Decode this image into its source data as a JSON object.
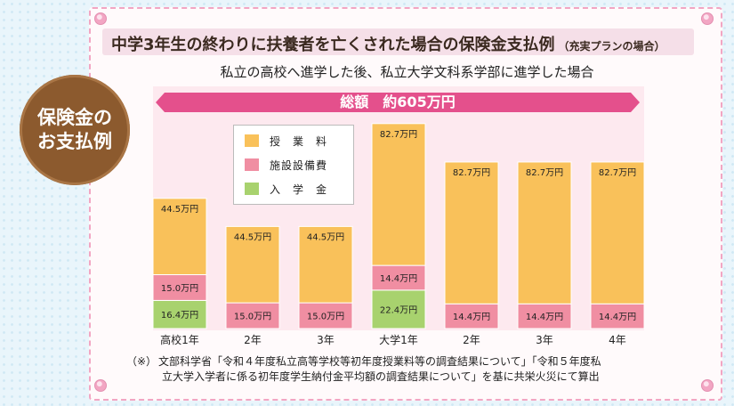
{
  "badge": {
    "text": "保険金の\nお支払例"
  },
  "header": {
    "title": "中学3年生の終わりに扶養者を亡くされた場合の保険金支払例",
    "plan_note": "（充実プランの場合）",
    "subtitle": "私立の高校へ進学した後、私立大学文科系学部に進学した場合",
    "total": "総額　約605万円"
  },
  "colors": {
    "tuition": "#f9c15a",
    "facility": "#f08ea2",
    "admission": "#a8d26e",
    "total_band": "#e4508c",
    "badge": "#8c5a2e",
    "chart_bg": "#fde9ef"
  },
  "legend": [
    {
      "label": "授　業　料",
      "color_key": "tuition"
    },
    {
      "label": "施設設備費",
      "color_key": "facility"
    },
    {
      "label": "入　学　金",
      "color_key": "admission"
    }
  ],
  "chart_data": {
    "type": "bar",
    "stacked": true,
    "categories": [
      "高校1年",
      "2年",
      "3年",
      "大学1年",
      "2年",
      "3年",
      "4年"
    ],
    "series": [
      {
        "name": "入　学　金",
        "color": "#a8d26e",
        "values": [
          16.4,
          0,
          0,
          22.4,
          0,
          0,
          0
        ],
        "labels": [
          "16.4万円",
          "",
          "",
          "22.4万円",
          "",
          "",
          ""
        ]
      },
      {
        "name": "施設設備費",
        "color": "#f08ea2",
        "values": [
          15.0,
          15.0,
          15.0,
          14.4,
          14.4,
          14.4,
          14.4
        ],
        "labels": [
          "15.0万円",
          "15.0万円",
          "15.0万円",
          "14.4万円",
          "14.4万円",
          "14.4万円",
          "14.4万円"
        ]
      },
      {
        "name": "授　業　料",
        "color": "#f9c15a",
        "values": [
          44.5,
          44.5,
          44.5,
          82.7,
          82.7,
          82.7,
          82.7
        ],
        "labels": [
          "44.5万円",
          "44.5万円",
          "44.5万円",
          "82.7万円",
          "82.7万円",
          "82.7万円",
          "82.7万円"
        ]
      }
    ],
    "ylim": [
      0,
      122
    ],
    "total_label": "総額　約605万円"
  },
  "footnote": {
    "mark": "（※）",
    "line1": "文部科学省「令和４年度私立高等学校等初年度授業料等の調査結果について」「令和５年度私",
    "line2": "立大学入学者に係る初年度学生納付金平均額の調査結果について」を基に共栄火災にて算出"
  }
}
